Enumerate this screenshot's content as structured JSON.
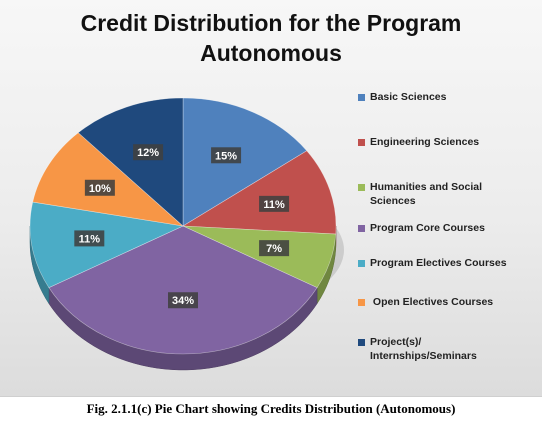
{
  "chart_data": {
    "type": "pie",
    "title_lines": [
      "Credit Distribution for the Program",
      "Autonomous"
    ],
    "categories": [
      "Basic Sciences",
      "Engineering Sciences",
      "Humanities and Social Sciences",
      "Program Core Courses",
      "Program Electives Courses",
      "Open Electives Courses",
      "Project(s)/ Internships/Seminars"
    ],
    "legend_lines": [
      [
        "Basic Sciences"
      ],
      [
        "Engineering Sciences"
      ],
      [
        "Humanities and Social",
        "Sciences"
      ],
      [
        "Program Core Courses"
      ],
      [
        "Program Electives Courses"
      ],
      [
        " Open Electives Courses"
      ],
      [
        "Project(s)/",
        "Internships/Seminars"
      ]
    ],
    "values": [
      15,
      11,
      7,
      34,
      11,
      10,
      12
    ],
    "data_labels": [
      "15%",
      "11%",
      "7%",
      "34%",
      "11%",
      "10%",
      "12%"
    ],
    "colors": [
      "#4f81bd",
      "#c0504d",
      "#9bbb59",
      "#8064a2",
      "#4bacc6",
      "#f79646",
      "#1f497d"
    ],
    "legend_position": "right",
    "style": "3d-tilted"
  },
  "caption": "Fig. 2.1.1(c) Pie Chart showing Credits Distribution (Autonomous)"
}
